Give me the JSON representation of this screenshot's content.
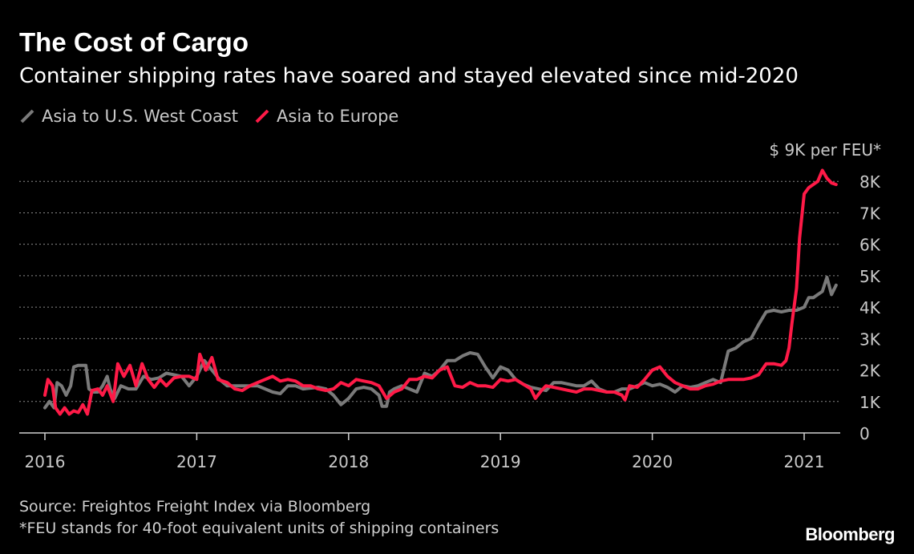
{
  "chart_data": {
    "type": "line",
    "title": "The Cost of Cargo",
    "subtitle": "Container shipping rates have soared and stayed elevated since mid-2020",
    "ylabel_top": "$ 9K per FEU*",
    "ylim": [
      0,
      9000
    ],
    "yticks": [
      {
        "value": 0,
        "label": "0"
      },
      {
        "value": 1000,
        "label": "1K"
      },
      {
        "value": 2000,
        "label": "2K"
      },
      {
        "value": 3000,
        "label": "3K"
      },
      {
        "value": 4000,
        "label": "4K"
      },
      {
        "value": 5000,
        "label": "5K"
      },
      {
        "value": 6000,
        "label": "6K"
      },
      {
        "value": 7000,
        "label": "7K"
      },
      {
        "value": 8000,
        "label": "8K"
      }
    ],
    "xlim": [
      2016.0,
      2021.3
    ],
    "xticks": [
      {
        "value": 2016,
        "label": "2016"
      },
      {
        "value": 2017,
        "label": "2017"
      },
      {
        "value": 2018,
        "label": "2018"
      },
      {
        "value": 2019,
        "label": "2019"
      },
      {
        "value": 2020,
        "label": "2020"
      },
      {
        "value": 2021,
        "label": "2021"
      }
    ],
    "grid": true,
    "legend_position": "top-left",
    "series": [
      {
        "name": "Asia to U.S. West Coast",
        "color": "#7a7a7a",
        "points": [
          [
            2016.0,
            800
          ],
          [
            2016.03,
            1000
          ],
          [
            2016.06,
            800
          ],
          [
            2016.08,
            1600
          ],
          [
            2016.11,
            1500
          ],
          [
            2016.14,
            1200
          ],
          [
            2016.17,
            1500
          ],
          [
            2016.19,
            2100
          ],
          [
            2016.22,
            2150
          ],
          [
            2016.25,
            2150
          ],
          [
            2016.27,
            2150
          ],
          [
            2016.29,
            1400
          ],
          [
            2016.32,
            1300
          ],
          [
            2016.35,
            1300
          ],
          [
            2016.38,
            1500
          ],
          [
            2016.41,
            1800
          ],
          [
            2016.43,
            1400
          ],
          [
            2016.46,
            1100
          ],
          [
            2016.5,
            1500
          ],
          [
            2016.55,
            1400
          ],
          [
            2016.6,
            1400
          ],
          [
            2016.65,
            1800
          ],
          [
            2016.7,
            1700
          ],
          [
            2016.75,
            1750
          ],
          [
            2016.8,
            1900
          ],
          [
            2016.85,
            1850
          ],
          [
            2016.9,
            1800
          ],
          [
            2016.95,
            1500
          ],
          [
            2017.0,
            1800
          ],
          [
            2017.05,
            2300
          ],
          [
            2017.1,
            2000
          ],
          [
            2017.15,
            1700
          ],
          [
            2017.2,
            1500
          ],
          [
            2017.3,
            1500
          ],
          [
            2017.4,
            1500
          ],
          [
            2017.5,
            1300
          ],
          [
            2017.55,
            1250
          ],
          [
            2017.6,
            1500
          ],
          [
            2017.65,
            1500
          ],
          [
            2017.7,
            1400
          ],
          [
            2017.8,
            1450
          ],
          [
            2017.85,
            1400
          ],
          [
            2017.9,
            1200
          ],
          [
            2017.95,
            900
          ],
          [
            2018.0,
            1100
          ],
          [
            2018.05,
            1400
          ],
          [
            2018.1,
            1450
          ],
          [
            2018.15,
            1400
          ],
          [
            2018.2,
            1200
          ],
          [
            2018.22,
            850
          ],
          [
            2018.25,
            850
          ],
          [
            2018.27,
            1300
          ],
          [
            2018.3,
            1400
          ],
          [
            2018.35,
            1500
          ],
          [
            2018.4,
            1400
          ],
          [
            2018.45,
            1300
          ],
          [
            2018.5,
            1900
          ],
          [
            2018.55,
            1800
          ],
          [
            2018.6,
            2000
          ],
          [
            2018.65,
            2300
          ],
          [
            2018.7,
            2300
          ],
          [
            2018.75,
            2450
          ],
          [
            2018.8,
            2550
          ],
          [
            2018.85,
            2500
          ],
          [
            2018.9,
            2100
          ],
          [
            2018.95,
            1750
          ],
          [
            2019.0,
            2100
          ],
          [
            2019.05,
            2000
          ],
          [
            2019.1,
            1700
          ],
          [
            2019.15,
            1550
          ],
          [
            2019.2,
            1450
          ],
          [
            2019.25,
            1400
          ],
          [
            2019.3,
            1350
          ],
          [
            2019.35,
            1600
          ],
          [
            2019.4,
            1600
          ],
          [
            2019.5,
            1500
          ],
          [
            2019.55,
            1500
          ],
          [
            2019.6,
            1650
          ],
          [
            2019.65,
            1400
          ],
          [
            2019.7,
            1300
          ],
          [
            2019.75,
            1300
          ],
          [
            2019.8,
            1400
          ],
          [
            2019.85,
            1400
          ],
          [
            2019.9,
            1500
          ],
          [
            2019.95,
            1600
          ],
          [
            2020.0,
            1500
          ],
          [
            2020.05,
            1550
          ],
          [
            2020.1,
            1450
          ],
          [
            2020.15,
            1300
          ],
          [
            2020.2,
            1500
          ],
          [
            2020.25,
            1450
          ],
          [
            2020.3,
            1500
          ],
          [
            2020.35,
            1600
          ],
          [
            2020.4,
            1700
          ],
          [
            2020.45,
            1600
          ],
          [
            2020.5,
            2600
          ],
          [
            2020.55,
            2700
          ],
          [
            2020.6,
            2900
          ],
          [
            2020.65,
            3000
          ],
          [
            2020.7,
            3450
          ],
          [
            2020.75,
            3850
          ],
          [
            2020.8,
            3900
          ],
          [
            2020.85,
            3850
          ],
          [
            2020.9,
            3900
          ],
          [
            2020.95,
            3900
          ],
          [
            2021.0,
            4000
          ],
          [
            2021.03,
            4300
          ],
          [
            2021.06,
            4300
          ],
          [
            2021.09,
            4400
          ],
          [
            2021.12,
            4500
          ],
          [
            2021.15,
            4950
          ],
          [
            2021.18,
            4400
          ],
          [
            2021.21,
            4700
          ]
        ]
      },
      {
        "name": "Asia to Europe",
        "color": "#ff1a47",
        "points": [
          [
            2016.0,
            1200
          ],
          [
            2016.02,
            1700
          ],
          [
            2016.05,
            1500
          ],
          [
            2016.07,
            800
          ],
          [
            2016.1,
            600
          ],
          [
            2016.13,
            800
          ],
          [
            2016.16,
            600
          ],
          [
            2016.19,
            700
          ],
          [
            2016.22,
            650
          ],
          [
            2016.25,
            900
          ],
          [
            2016.28,
            600
          ],
          [
            2016.31,
            1350
          ],
          [
            2016.35,
            1400
          ],
          [
            2016.38,
            1200
          ],
          [
            2016.41,
            1500
          ],
          [
            2016.45,
            1000
          ],
          [
            2016.48,
            2200
          ],
          [
            2016.52,
            1800
          ],
          [
            2016.56,
            2150
          ],
          [
            2016.6,
            1500
          ],
          [
            2016.64,
            2200
          ],
          [
            2016.68,
            1700
          ],
          [
            2016.72,
            1450
          ],
          [
            2016.76,
            1700
          ],
          [
            2016.8,
            1500
          ],
          [
            2016.85,
            1750
          ],
          [
            2016.9,
            1800
          ],
          [
            2016.95,
            1800
          ],
          [
            2017.0,
            1700
          ],
          [
            2017.02,
            2500
          ],
          [
            2017.06,
            2000
          ],
          [
            2017.1,
            2400
          ],
          [
            2017.14,
            1700
          ],
          [
            2017.2,
            1600
          ],
          [
            2017.25,
            1400
          ],
          [
            2017.3,
            1350
          ],
          [
            2017.35,
            1500
          ],
          [
            2017.4,
            1600
          ],
          [
            2017.45,
            1700
          ],
          [
            2017.5,
            1800
          ],
          [
            2017.55,
            1650
          ],
          [
            2017.6,
            1700
          ],
          [
            2017.65,
            1650
          ],
          [
            2017.7,
            1500
          ],
          [
            2017.75,
            1500
          ],
          [
            2017.8,
            1400
          ],
          [
            2017.85,
            1350
          ],
          [
            2017.9,
            1400
          ],
          [
            2017.95,
            1600
          ],
          [
            2018.0,
            1500
          ],
          [
            2018.05,
            1700
          ],
          [
            2018.1,
            1650
          ],
          [
            2018.15,
            1600
          ],
          [
            2018.2,
            1500
          ],
          [
            2018.25,
            1100
          ],
          [
            2018.3,
            1300
          ],
          [
            2018.35,
            1400
          ],
          [
            2018.4,
            1700
          ],
          [
            2018.45,
            1700
          ],
          [
            2018.5,
            1800
          ],
          [
            2018.55,
            1750
          ],
          [
            2018.6,
            2000
          ],
          [
            2018.65,
            2100
          ],
          [
            2018.7,
            1500
          ],
          [
            2018.75,
            1450
          ],
          [
            2018.8,
            1600
          ],
          [
            2018.85,
            1500
          ],
          [
            2018.9,
            1500
          ],
          [
            2018.95,
            1450
          ],
          [
            2019.0,
            1700
          ],
          [
            2019.05,
            1650
          ],
          [
            2019.1,
            1700
          ],
          [
            2019.15,
            1550
          ],
          [
            2019.2,
            1400
          ],
          [
            2019.23,
            1100
          ],
          [
            2019.27,
            1350
          ],
          [
            2019.3,
            1500
          ],
          [
            2019.35,
            1450
          ],
          [
            2019.4,
            1400
          ],
          [
            2019.45,
            1350
          ],
          [
            2019.5,
            1300
          ],
          [
            2019.55,
            1400
          ],
          [
            2019.6,
            1400
          ],
          [
            2019.65,
            1350
          ],
          [
            2019.7,
            1300
          ],
          [
            2019.75,
            1300
          ],
          [
            2019.8,
            1200
          ],
          [
            2019.82,
            1050
          ],
          [
            2019.85,
            1500
          ],
          [
            2019.9,
            1450
          ],
          [
            2019.95,
            1700
          ],
          [
            2020.0,
            2000
          ],
          [
            2020.05,
            2100
          ],
          [
            2020.1,
            1800
          ],
          [
            2020.15,
            1600
          ],
          [
            2020.2,
            1500
          ],
          [
            2020.25,
            1400
          ],
          [
            2020.3,
            1400
          ],
          [
            2020.35,
            1500
          ],
          [
            2020.4,
            1550
          ],
          [
            2020.45,
            1650
          ],
          [
            2020.5,
            1700
          ],
          [
            2020.55,
            1700
          ],
          [
            2020.6,
            1700
          ],
          [
            2020.65,
            1750
          ],
          [
            2020.7,
            1850
          ],
          [
            2020.75,
            2200
          ],
          [
            2020.8,
            2200
          ],
          [
            2020.85,
            2150
          ],
          [
            2020.88,
            2300
          ],
          [
            2020.9,
            2700
          ],
          [
            2020.92,
            3500
          ],
          [
            2020.95,
            4600
          ],
          [
            2020.97,
            6200
          ],
          [
            2021.0,
            7600
          ],
          [
            2021.03,
            7800
          ],
          [
            2021.06,
            7900
          ],
          [
            2021.09,
            8000
          ],
          [
            2021.12,
            8350
          ],
          [
            2021.15,
            8100
          ],
          [
            2021.18,
            7950
          ],
          [
            2021.21,
            7900
          ]
        ]
      }
    ]
  },
  "source": "Source: Freightos Freight Index via Bloomberg",
  "footnote": "*FEU stands for 40-foot equivalent units of shipping containers",
  "brand": "Bloomberg"
}
